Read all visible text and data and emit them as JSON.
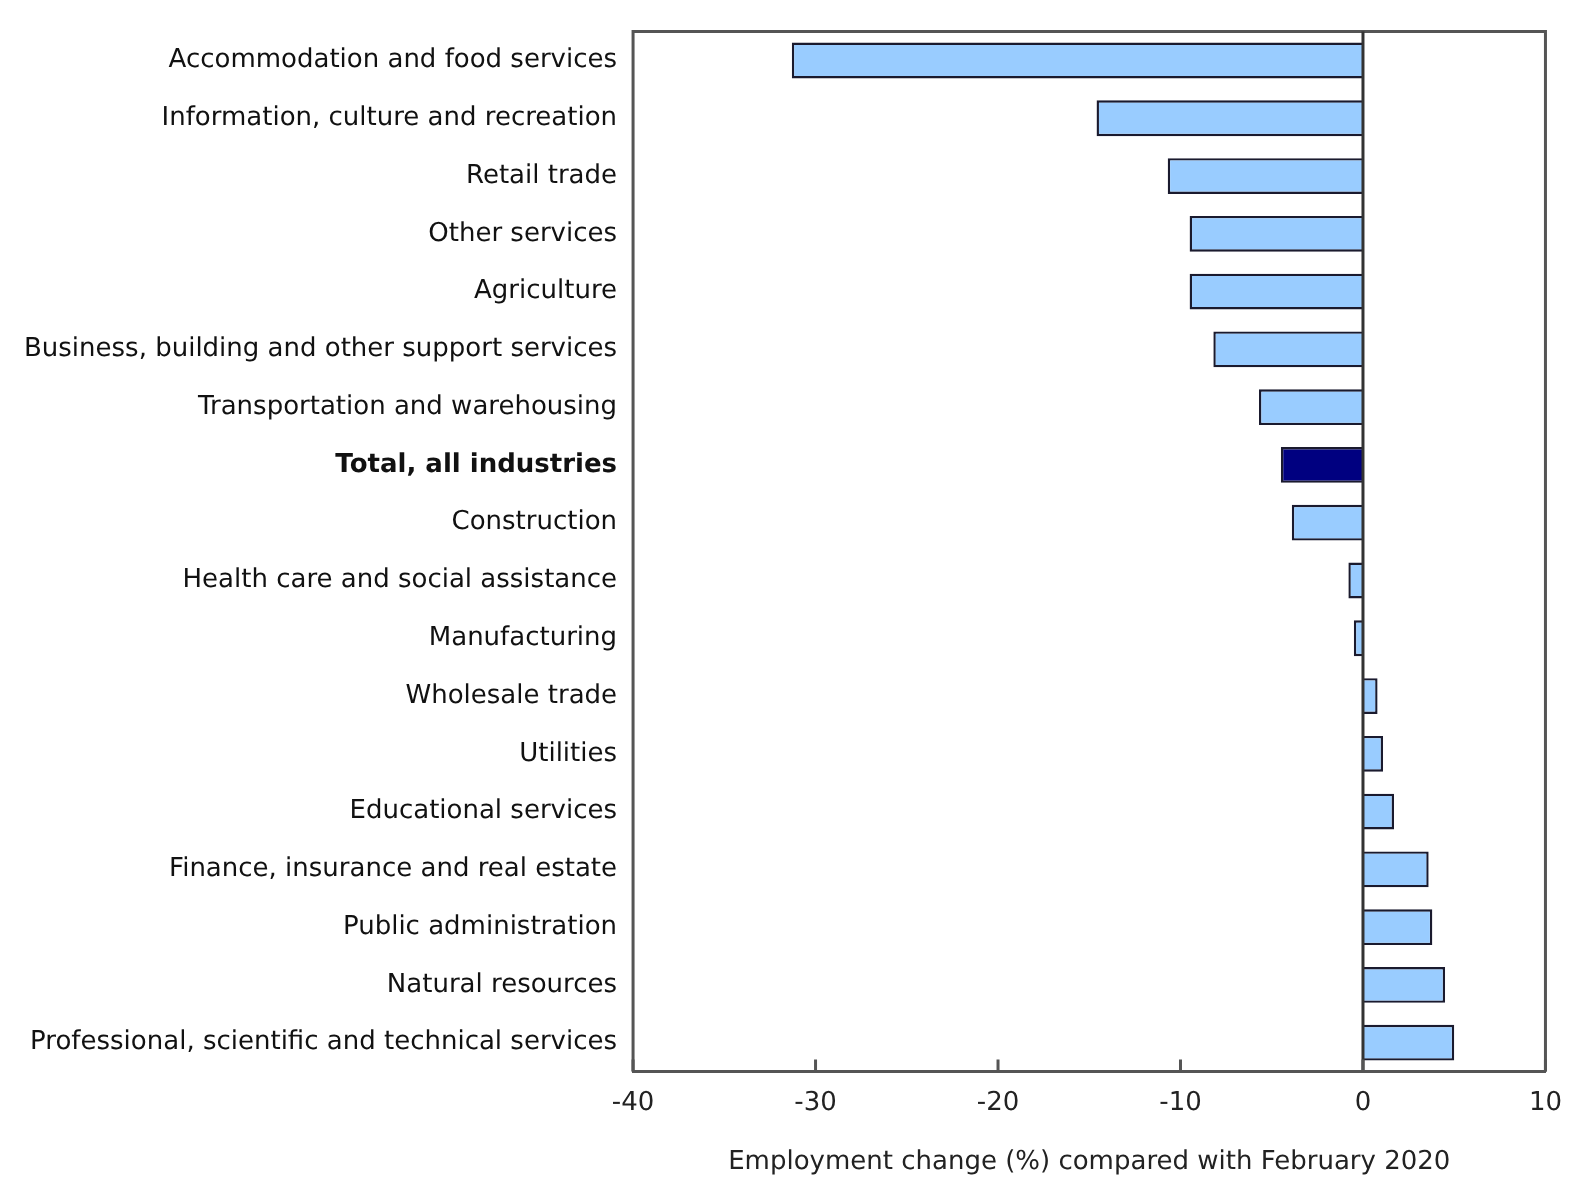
{
  "chart_data": {
    "type": "bar",
    "orientation": "horizontal",
    "xlabel": "Employment change (%) compared with February 2020",
    "categories": [
      "Accommodation and food services",
      "Information, culture and recreation",
      "Retail trade",
      "Other services",
      "Agriculture",
      "Business, building and other support services",
      "Transportation and warehousing",
      "Total, all industries",
      "Construction",
      "Health care and social assistance",
      "Manufacturing",
      "Wholesale trade",
      "Utilities",
      "Educational services",
      "Finance, insurance and real estate",
      "Public administration",
      "Natural resources",
      "Professional, scientific and technical services"
    ],
    "values": [
      -31.3,
      -14.6,
      -10.7,
      -9.5,
      -9.5,
      -8.2,
      -5.7,
      -4.5,
      -3.9,
      -0.8,
      -0.5,
      0.8,
      1.1,
      1.7,
      3.6,
      3.8,
      4.5,
      5.0
    ],
    "colors": [
      "#99ccff",
      "#99ccff",
      "#99ccff",
      "#99ccff",
      "#99ccff",
      "#99ccff",
      "#99ccff",
      "#000080",
      "#99ccff",
      "#99ccff",
      "#99ccff",
      "#99ccff",
      "#99ccff",
      "#99ccff",
      "#99ccff",
      "#99ccff",
      "#99ccff",
      "#99ccff"
    ],
    "ref_lines": [
      {
        "axis": "x",
        "value": 0,
        "color": "#333333"
      }
    ],
    "xlim": [
      -40,
      10
    ],
    "xticks": [
      -40,
      -30,
      -20,
      -10,
      0,
      10
    ],
    "grid": false,
    "legend": false
  }
}
